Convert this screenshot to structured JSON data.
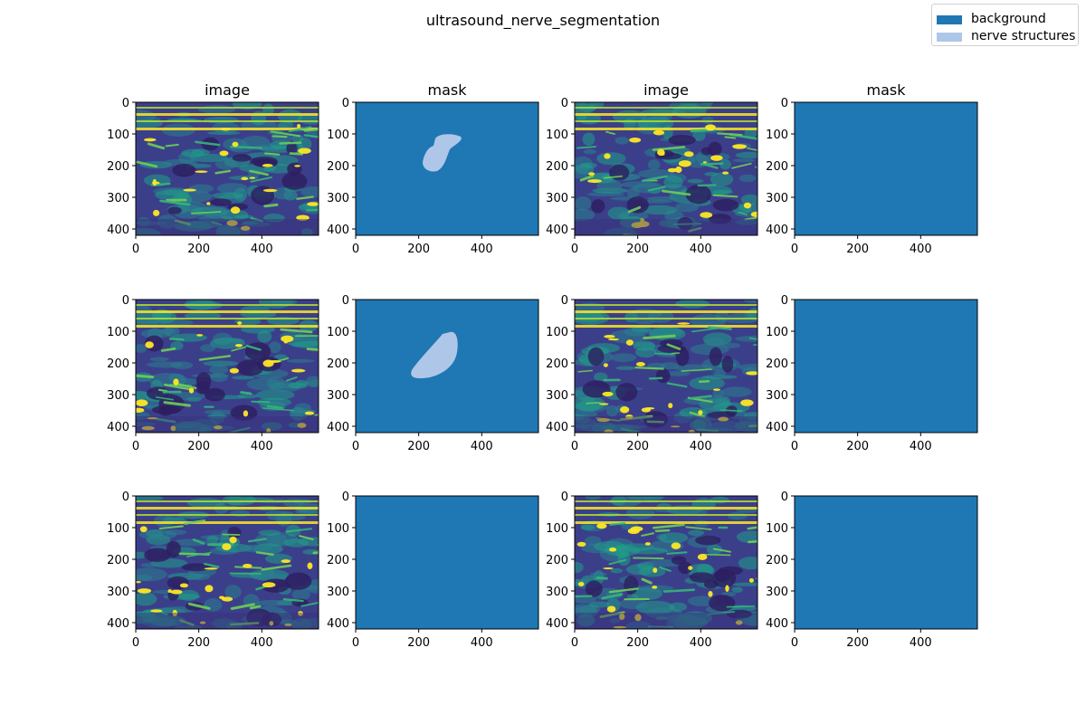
{
  "figure": {
    "title": "ultrasound_nerve_segmentation"
  },
  "legend": {
    "items": [
      {
        "label": "background",
        "color": "#1f77b4"
      },
      {
        "label": "nerve structures",
        "color": "#aec7e8"
      }
    ]
  },
  "colors": {
    "background": "#1f77b4",
    "nerve": "#aec7e8",
    "axis": "#000000"
  },
  "panels": {
    "x_ticks": [
      "0",
      "200",
      "400"
    ],
    "y_ticks": [
      "0",
      "100",
      "200",
      "300",
      "400"
    ],
    "x_range": [
      0,
      580
    ],
    "y_range": [
      420,
      0
    ],
    "rows": [
      [
        {
          "kind": "image",
          "title": "image"
        },
        {
          "kind": "mask",
          "title": "mask",
          "nerve_visible": true
        },
        {
          "kind": "image",
          "title": "image"
        },
        {
          "kind": "mask",
          "title": "mask",
          "nerve_visible": false
        }
      ],
      [
        {
          "kind": "image",
          "title": ""
        },
        {
          "kind": "mask",
          "title": "",
          "nerve_visible": true
        },
        {
          "kind": "image",
          "title": ""
        },
        {
          "kind": "mask",
          "title": "",
          "nerve_visible": false
        }
      ],
      [
        {
          "kind": "image",
          "title": ""
        },
        {
          "kind": "mask",
          "title": "",
          "nerve_visible": false
        },
        {
          "kind": "image",
          "title": ""
        },
        {
          "kind": "mask",
          "title": "",
          "nerve_visible": false
        }
      ]
    ]
  }
}
